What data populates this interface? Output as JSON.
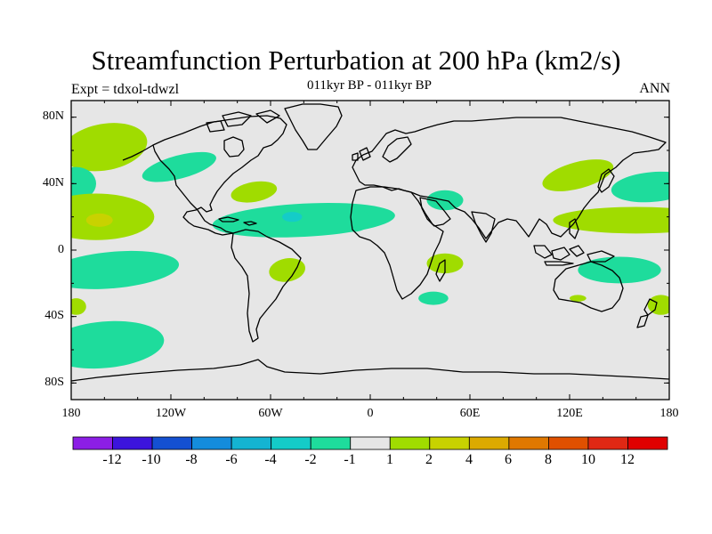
{
  "header": {
    "title": "Streamfunction Perturbation at 200 hPa (km2/s)",
    "subtitle": "011kyr BP - 011kyr BP",
    "left_string": "Expt = tdxol-tdwzl",
    "right_string": "ANN"
  },
  "axes": {
    "lat_labels": [
      "80N",
      "40N",
      "0",
      "40S",
      "80S"
    ],
    "lon_labels": [
      "180",
      "120W",
      "60W",
      "0",
      "60E",
      "120E",
      "180"
    ]
  },
  "colorbar": {
    "labels": [
      "-12",
      "-10",
      "-8",
      "-6",
      "-4",
      "-2",
      "-1",
      "1",
      "2",
      "4",
      "6",
      "8",
      "10",
      "12"
    ],
    "colors": [
      "#8c1ee6",
      "#3c14dc",
      "#1450d2",
      "#148cdc",
      "#14b4d2",
      "#14ccc8",
      "#1edc9c",
      "#e6e6e6",
      "#a0dc00",
      "#c8d200",
      "#dcaa00",
      "#e07800",
      "#e05000",
      "#e02814",
      "#e00000"
    ]
  },
  "chart_data": {
    "type": "heatmap",
    "title": "Streamfunction Perturbation at 200 hPa (km2/s)",
    "subtitle": "011kyr BP - 011kyr BP",
    "projection": "cylindrical equidistant",
    "lon_range": [
      -180,
      180
    ],
    "lat_range": [
      -90,
      90
    ],
    "contour_levels": [
      -12,
      -10,
      -8,
      -6,
      -4,
      -2,
      -1,
      1,
      2,
      4,
      6,
      8,
      10,
      12
    ],
    "background_value_range": [
      -1,
      1
    ],
    "regions": [
      {
        "center": [
          -160,
          62
        ],
        "value_range": [
          1,
          2
        ]
      },
      {
        "center": [
          -115,
          50
        ],
        "value_range": [
          -2,
          -1
        ]
      },
      {
        "center": [
          -70,
          35
        ],
        "value_range": [
          1,
          2
        ]
      },
      {
        "center": [
          -177,
          40
        ],
        "value_range": [
          -2,
          -1
        ]
      },
      {
        "center": [
          -165,
          20
        ],
        "value_range": [
          1,
          2
        ]
      },
      {
        "center": [
          -163,
          18
        ],
        "value_range": [
          2,
          4
        ]
      },
      {
        "center": [
          -40,
          18
        ],
        "value_range": [
          -2,
          -1
        ]
      },
      {
        "center": [
          -47,
          20
        ],
        "value_range": [
          -4,
          -2
        ]
      },
      {
        "center": [
          -10,
          18
        ],
        "value_range": [
          -2,
          -1
        ]
      },
      {
        "center": [
          -155,
          -12
        ],
        "value_range": [
          -2,
          -1
        ]
      },
      {
        "center": [
          -50,
          -12
        ],
        "value_range": [
          1,
          2
        ]
      },
      {
        "center": [
          -177,
          -34
        ],
        "value_range": [
          1,
          2
        ]
      },
      {
        "center": [
          -160,
          -57
        ],
        "value_range": [
          -2,
          -1
        ]
      },
      {
        "center": [
          45,
          30
        ],
        "value_range": [
          -2,
          -1
        ]
      },
      {
        "center": [
          45,
          -8
        ],
        "value_range": [
          1,
          2
        ]
      },
      {
        "center": [
          38,
          -29
        ],
        "value_range": [
          -2,
          -1
        ]
      },
      {
        "center": [
          125,
          45
        ],
        "value_range": [
          1,
          2
        ]
      },
      {
        "center": [
          170,
          38
        ],
        "value_range": [
          -2,
          -1
        ]
      },
      {
        "center": [
          160,
          18
        ],
        "value_range": [
          1,
          2
        ]
      },
      {
        "center": [
          150,
          -12
        ],
        "value_range": [
          -2,
          -1
        ]
      },
      {
        "center": [
          175,
          -33
        ],
        "value_range": [
          1,
          2
        ]
      },
      {
        "center": [
          125,
          -29
        ],
        "value_range": [
          1,
          2
        ]
      }
    ]
  }
}
